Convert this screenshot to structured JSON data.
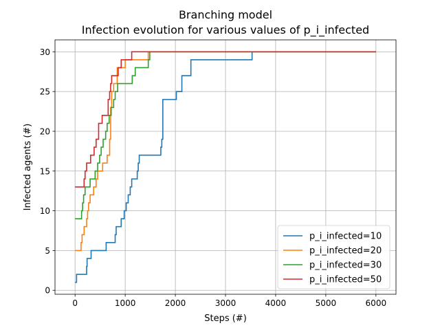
{
  "chart_data": {
    "type": "line",
    "title": "Branching model",
    "subtitle": "Infection evolution for various values of p_i_infected",
    "xlabel": "Steps (#)",
    "ylabel": "Infected agents (#)",
    "xlim": [
      -400,
      6400
    ],
    "ylim": [
      -0.5,
      31.5
    ],
    "xticks": [
      0,
      1000,
      2000,
      3000,
      4000,
      5000,
      6000
    ],
    "xtick_labels": [
      "0",
      "1000",
      "2000",
      "3000",
      "4000",
      "5000",
      "6000"
    ],
    "yticks": [
      0,
      5,
      10,
      15,
      20,
      25,
      30
    ],
    "ytick_labels": [
      "0",
      "5",
      "10",
      "15",
      "20",
      "25",
      "30"
    ],
    "grid": true,
    "legend_position": "lower-right",
    "series": [
      {
        "name": "p_i_infected=10",
        "color": "#1f77b4",
        "points": [
          [
            0,
            1
          ],
          [
            30,
            1
          ],
          [
            30,
            2
          ],
          [
            230,
            2
          ],
          [
            230,
            3
          ],
          [
            240,
            3
          ],
          [
            240,
            4
          ],
          [
            320,
            4
          ],
          [
            320,
            5
          ],
          [
            620,
            5
          ],
          [
            620,
            6
          ],
          [
            800,
            6
          ],
          [
            800,
            7
          ],
          [
            820,
            7
          ],
          [
            820,
            8
          ],
          [
            920,
            8
          ],
          [
            920,
            9
          ],
          [
            980,
            9
          ],
          [
            980,
            10
          ],
          [
            1020,
            10
          ],
          [
            1020,
            11
          ],
          [
            1060,
            11
          ],
          [
            1060,
            12
          ],
          [
            1100,
            12
          ],
          [
            1100,
            13
          ],
          [
            1130,
            13
          ],
          [
            1130,
            14
          ],
          [
            1240,
            14
          ],
          [
            1240,
            15
          ],
          [
            1260,
            15
          ],
          [
            1260,
            16
          ],
          [
            1280,
            16
          ],
          [
            1280,
            17
          ],
          [
            1710,
            17
          ],
          [
            1710,
            18
          ],
          [
            1730,
            18
          ],
          [
            1730,
            19
          ],
          [
            1750,
            19
          ],
          [
            1750,
            24
          ],
          [
            2020,
            24
          ],
          [
            2020,
            25
          ],
          [
            2130,
            25
          ],
          [
            2130,
            27
          ],
          [
            2310,
            27
          ],
          [
            2310,
            29
          ],
          [
            3530,
            29
          ],
          [
            3530,
            30
          ],
          [
            6000,
            30
          ]
        ]
      },
      {
        "name": "p_i_infected=20",
        "color": "#ff7f0e",
        "points": [
          [
            0,
            5
          ],
          [
            120,
            5
          ],
          [
            120,
            6
          ],
          [
            140,
            6
          ],
          [
            140,
            7
          ],
          [
            180,
            7
          ],
          [
            180,
            8
          ],
          [
            230,
            8
          ],
          [
            230,
            9
          ],
          [
            250,
            9
          ],
          [
            250,
            10
          ],
          [
            270,
            10
          ],
          [
            270,
            11
          ],
          [
            300,
            11
          ],
          [
            300,
            12
          ],
          [
            370,
            12
          ],
          [
            370,
            13
          ],
          [
            420,
            13
          ],
          [
            420,
            14
          ],
          [
            450,
            14
          ],
          [
            450,
            15
          ],
          [
            550,
            15
          ],
          [
            550,
            16
          ],
          [
            640,
            16
          ],
          [
            640,
            17
          ],
          [
            690,
            17
          ],
          [
            690,
            19
          ],
          [
            710,
            19
          ],
          [
            710,
            23
          ],
          [
            730,
            23
          ],
          [
            730,
            25
          ],
          [
            770,
            25
          ],
          [
            770,
            26
          ],
          [
            840,
            26
          ],
          [
            840,
            28
          ],
          [
            1000,
            28
          ],
          [
            1000,
            29
          ],
          [
            1460,
            29
          ],
          [
            1460,
            30
          ],
          [
            6000,
            30
          ]
        ]
      },
      {
        "name": "p_i_infected=30",
        "color": "#2ca02c",
        "points": [
          [
            0,
            9
          ],
          [
            130,
            9
          ],
          [
            130,
            10
          ],
          [
            150,
            10
          ],
          [
            150,
            11
          ],
          [
            170,
            11
          ],
          [
            170,
            12
          ],
          [
            200,
            12
          ],
          [
            200,
            13
          ],
          [
            300,
            13
          ],
          [
            300,
            14
          ],
          [
            400,
            14
          ],
          [
            400,
            15
          ],
          [
            450,
            15
          ],
          [
            450,
            16
          ],
          [
            490,
            16
          ],
          [
            490,
            17
          ],
          [
            520,
            17
          ],
          [
            520,
            18
          ],
          [
            560,
            18
          ],
          [
            560,
            19
          ],
          [
            610,
            19
          ],
          [
            610,
            20
          ],
          [
            640,
            20
          ],
          [
            640,
            21
          ],
          [
            680,
            21
          ],
          [
            680,
            22
          ],
          [
            720,
            22
          ],
          [
            720,
            23
          ],
          [
            770,
            23
          ],
          [
            770,
            24
          ],
          [
            800,
            24
          ],
          [
            800,
            25
          ],
          [
            850,
            25
          ],
          [
            850,
            26
          ],
          [
            1140,
            26
          ],
          [
            1140,
            27
          ],
          [
            1200,
            27
          ],
          [
            1200,
            28
          ],
          [
            1460,
            28
          ],
          [
            1460,
            29
          ],
          [
            1490,
            29
          ],
          [
            1490,
            30
          ],
          [
            6000,
            30
          ]
        ]
      },
      {
        "name": "p_i_infected=50",
        "color": "#d62728",
        "points": [
          [
            0,
            13
          ],
          [
            180,
            13
          ],
          [
            180,
            14
          ],
          [
            200,
            14
          ],
          [
            200,
            15
          ],
          [
            230,
            15
          ],
          [
            230,
            16
          ],
          [
            310,
            16
          ],
          [
            310,
            17
          ],
          [
            380,
            17
          ],
          [
            380,
            18
          ],
          [
            420,
            18
          ],
          [
            420,
            19
          ],
          [
            470,
            19
          ],
          [
            470,
            21
          ],
          [
            540,
            21
          ],
          [
            540,
            22
          ],
          [
            660,
            22
          ],
          [
            660,
            24
          ],
          [
            690,
            24
          ],
          [
            690,
            25
          ],
          [
            710,
            25
          ],
          [
            710,
            26
          ],
          [
            730,
            26
          ],
          [
            730,
            27
          ],
          [
            860,
            27
          ],
          [
            860,
            28
          ],
          [
            920,
            28
          ],
          [
            920,
            29
          ],
          [
            1130,
            29
          ],
          [
            1130,
            30
          ],
          [
            6000,
            30
          ]
        ]
      }
    ]
  }
}
